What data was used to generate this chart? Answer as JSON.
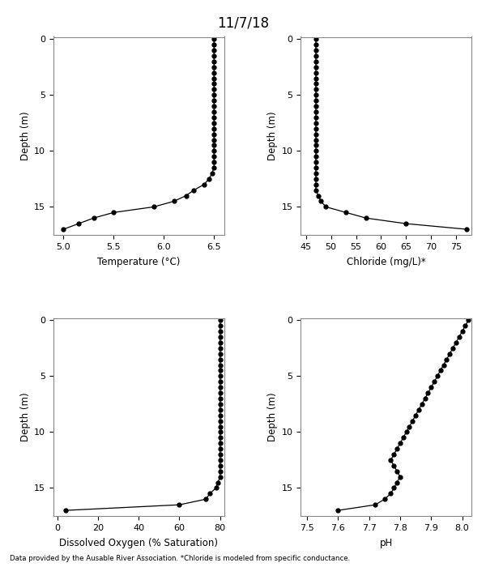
{
  "title": "11/7/18",
  "footnote": "Data provided by the Ausable River Association. *Chloride is modeled from specific conductance.",
  "temp": {
    "xlabel": "Temperature (°C)",
    "ylabel": "Depth (m)",
    "xlim": [
      4.9,
      6.6
    ],
    "xticks": [
      5.0,
      5.5,
      6.0,
      6.5
    ],
    "depth": [
      0,
      0.5,
      1,
      1.5,
      2,
      2.5,
      3,
      3.5,
      4,
      4.5,
      5,
      5.5,
      6,
      6.5,
      7,
      7.5,
      8,
      8.5,
      9,
      9.5,
      10,
      10.5,
      11,
      11.5,
      12,
      12.5,
      13,
      13.5,
      14,
      14.5,
      15,
      15.5,
      16,
      16.5,
      17
    ],
    "values": [
      6.5,
      6.5,
      6.5,
      6.5,
      6.5,
      6.5,
      6.5,
      6.5,
      6.5,
      6.5,
      6.5,
      6.5,
      6.5,
      6.5,
      6.5,
      6.5,
      6.5,
      6.5,
      6.5,
      6.5,
      6.5,
      6.5,
      6.5,
      6.5,
      6.48,
      6.45,
      6.4,
      6.3,
      6.22,
      6.1,
      5.9,
      5.5,
      5.3,
      5.15,
      5.0
    ],
    "ylim": [
      17.5,
      -0.2
    ],
    "yticks": [
      0,
      5,
      10,
      15
    ]
  },
  "chloride": {
    "xlabel": "Chloride (mg/L)*",
    "ylabel": "Depth (m)",
    "xlim": [
      44,
      78
    ],
    "xticks": [
      45,
      50,
      55,
      60,
      65,
      70,
      75
    ],
    "depth": [
      0,
      0.5,
      1,
      1.5,
      2,
      2.5,
      3,
      3.5,
      4,
      4.5,
      5,
      5.5,
      6,
      6.5,
      7,
      7.5,
      8,
      8.5,
      9,
      9.5,
      10,
      10.5,
      11,
      11.5,
      12,
      12.5,
      13,
      13.5,
      14,
      14.5,
      15,
      15.5,
      16,
      16.5,
      17
    ],
    "values": [
      47,
      47,
      47,
      47,
      47,
      47,
      47,
      47,
      47,
      47,
      47,
      47,
      47,
      47,
      47,
      47,
      47,
      47,
      47,
      47,
      47,
      47,
      47,
      47,
      47,
      47,
      47,
      47,
      47.5,
      48,
      49,
      53,
      57,
      65,
      77
    ],
    "ylim": [
      17.5,
      -0.2
    ],
    "yticks": [
      0,
      5,
      10,
      15
    ]
  },
  "do": {
    "xlabel": "Dissolved Oxygen (% Saturation)",
    "ylabel": "Depth (m)",
    "xlim": [
      -2,
      82
    ],
    "xticks": [
      0,
      20,
      40,
      60,
      80
    ],
    "depth": [
      0,
      0.5,
      1,
      1.5,
      2,
      2.5,
      3,
      3.5,
      4,
      4.5,
      5,
      5.5,
      6,
      6.5,
      7,
      7.5,
      8,
      8.5,
      9,
      9.5,
      10,
      10.5,
      11,
      11.5,
      12,
      12.5,
      13,
      13.5,
      14,
      14.5,
      15,
      15.5,
      16,
      16.5,
      17
    ],
    "values": [
      80,
      80,
      80,
      80,
      80,
      80,
      80,
      80,
      80,
      80,
      80,
      80,
      80,
      80,
      80,
      80,
      80,
      80,
      80,
      80,
      80,
      80,
      80,
      80,
      80,
      80,
      80,
      80,
      80,
      79,
      78,
      75,
      73,
      60,
      4
    ],
    "ylim": [
      17.5,
      -0.2
    ],
    "yticks": [
      0,
      5,
      10,
      15
    ]
  },
  "ph": {
    "xlabel": "pH",
    "ylabel": "Depth (m)",
    "xlim": [
      7.48,
      8.03
    ],
    "xticks": [
      7.5,
      7.6,
      7.7,
      7.8,
      7.9,
      8.0
    ],
    "depth": [
      0,
      0.5,
      1,
      1.5,
      2,
      2.5,
      3,
      3.5,
      4,
      4.5,
      5,
      5.5,
      6,
      6.5,
      7,
      7.5,
      8,
      8.5,
      9,
      9.5,
      10,
      10.5,
      11,
      11.5,
      12,
      12.5,
      13,
      13.5,
      14,
      14.5,
      15,
      15.5,
      16,
      16.5,
      17
    ],
    "values": [
      8.02,
      8.01,
      8.0,
      7.99,
      7.98,
      7.97,
      7.96,
      7.95,
      7.94,
      7.93,
      7.92,
      7.91,
      7.9,
      7.89,
      7.88,
      7.87,
      7.86,
      7.85,
      7.84,
      7.83,
      7.82,
      7.81,
      7.8,
      7.79,
      7.78,
      7.77,
      7.78,
      7.79,
      7.8,
      7.79,
      7.78,
      7.77,
      7.75,
      7.72,
      7.6
    ],
    "ylim": [
      17.5,
      -0.2
    ],
    "yticks": [
      0,
      5,
      10,
      15
    ]
  }
}
